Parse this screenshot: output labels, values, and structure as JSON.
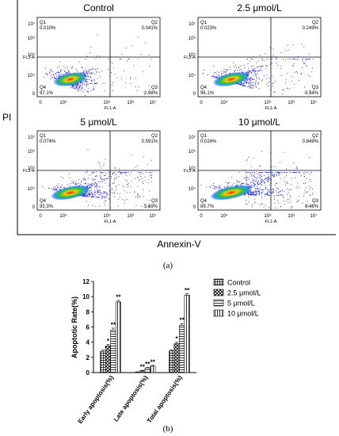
{
  "figure": {
    "axis_y_label": "PI",
    "axis_x_label": "Annexin-V",
    "caption_a": "(a)",
    "caption_b": "(b)"
  },
  "flow_panels": [
    {
      "title": "Control",
      "q1": "0.010%",
      "q2": "0.041%",
      "q3": "2.88%",
      "q4": "97.1%",
      "q1_label": "Q1",
      "q2_label": "Q2",
      "q3_label": "Q3",
      "q4_label": "Q4",
      "y_axis_title": "FL3-A",
      "x_axis_title": "FL1-A",
      "y_ticks": [
        "10⁷",
        "10⁶",
        "10⁵",
        "10⁴",
        "0"
      ],
      "x_ticks": [
        "0",
        "10⁴",
        "10⁵",
        "10⁶",
        "10⁷"
      ],
      "spread": 0.0,
      "q3_value": 2.88,
      "q2_value": 0.041,
      "q1_value": 0.01,
      "q4_value": 97.1
    },
    {
      "title": "2.5 μmol/L",
      "q1": "0.023%",
      "q2": "0.249%",
      "q3": "3.54%",
      "q4": "96.1%",
      "q1_label": "Q1",
      "q2_label": "Q2",
      "q3_label": "Q3",
      "q4_label": "Q4",
      "y_axis_title": "FL3-A",
      "x_axis_title": "FL1-A",
      "y_ticks": [
        "10⁷",
        "10⁶",
        "10⁵",
        "10⁴",
        "0"
      ],
      "x_ticks": [
        "0",
        "10⁴",
        "10⁵",
        "10⁶",
        "10⁷"
      ],
      "spread": 0.3,
      "q3_value": 3.54,
      "q2_value": 0.249,
      "q1_value": 0.023,
      "q4_value": 96.1
    },
    {
      "title": "5 μmol/L",
      "q1": "0.074%",
      "q2": "0.591%",
      "q3": "5.69%",
      "q4": "93.3%",
      "q1_label": "Q1",
      "q2_label": "Q2",
      "q3_label": "Q3",
      "q4_label": "Q4",
      "y_axis_title": "FL3-A",
      "x_axis_title": "FL1-A",
      "y_ticks": [
        "10⁷",
        "10⁶",
        "10⁵",
        "10⁴",
        "0"
      ],
      "x_ticks": [
        "0",
        "10⁴",
        "10⁵",
        "10⁶",
        "10⁷"
      ],
      "spread": 0.6,
      "q3_value": 5.69,
      "q2_value": 0.591,
      "q1_value": 0.074,
      "q4_value": 93.3
    },
    {
      "title": "10 μmol/L",
      "q1": "0.024%",
      "q2": "0.849%",
      "q3": "8.46%",
      "q4": "89.7%",
      "q1_label": "Q1",
      "q2_label": "Q2",
      "q3_label": "Q3",
      "q4_label": "Q4",
      "y_axis_title": "FL3-A",
      "x_axis_title": "FL1-A",
      "y_ticks": [
        "10⁷",
        "10⁶",
        "10⁵",
        "10⁴",
        "0"
      ],
      "x_ticks": [
        "0",
        "10⁴",
        "10⁵",
        "10⁶",
        "10⁷"
      ],
      "spread": 0.9,
      "q3_value": 8.46,
      "q2_value": 0.849,
      "q1_value": 0.024,
      "q4_value": 89.7
    }
  ],
  "chart_data": {
    "type": "bar",
    "ylabel": "Apoptotic Rate(%)",
    "xlabel": "",
    "ylim": [
      0,
      12
    ],
    "y_ticks": [
      0,
      2,
      4,
      6,
      8,
      10,
      12
    ],
    "categories": [
      "Early apoptosis(%)",
      "Late apoptosis(%)",
      "Total apoptosis(%)"
    ],
    "series": [
      {
        "name": "Control",
        "values": [
          2.8,
          0.05,
          2.85
        ],
        "errors": [
          0.15,
          0.05,
          0.15
        ],
        "marks": [
          "",
          "",
          ""
        ],
        "pattern": "grid"
      },
      {
        "name": "2.5 μmol/L",
        "values": [
          3.5,
          0.25,
          3.8
        ],
        "errors": [
          0.2,
          0.05,
          0.2
        ],
        "marks": [
          "*",
          "**",
          "*"
        ],
        "pattern": "cross"
      },
      {
        "name": "5 μmol/L",
        "values": [
          5.6,
          0.6,
          6.2
        ],
        "errors": [
          0.25,
          0.1,
          0.25
        ],
        "marks": [
          "**",
          "**",
          "**"
        ],
        "pattern": "hlines"
      },
      {
        "name": "10 μmol/L",
        "values": [
          9.3,
          0.85,
          10.2
        ],
        "errors": [
          0.2,
          0.1,
          0.2
        ],
        "marks": [
          "**",
          "**",
          "**"
        ],
        "pattern": "vlines"
      }
    ],
    "legend_position": "right",
    "grid": false
  }
}
